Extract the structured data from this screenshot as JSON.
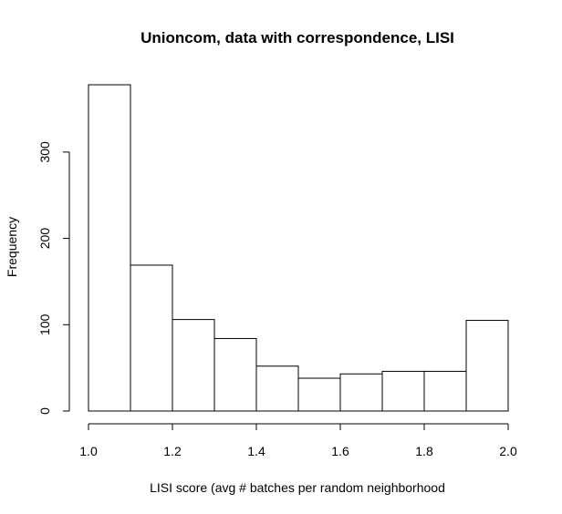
{
  "chart_data": {
    "type": "bar",
    "title": "Unioncom, data with correspondence, LISI",
    "xlabel": "LISI score (avg # batches per random neighborhood",
    "ylabel": "Frequency",
    "bins": [
      {
        "from": 1.0,
        "to": 1.1,
        "value": 378
      },
      {
        "from": 1.1,
        "to": 1.2,
        "value": 169
      },
      {
        "from": 1.2,
        "to": 1.3,
        "value": 106
      },
      {
        "from": 1.3,
        "to": 1.4,
        "value": 84
      },
      {
        "from": 1.4,
        "to": 1.5,
        "value": 52
      },
      {
        "from": 1.5,
        "to": 1.6,
        "value": 38
      },
      {
        "from": 1.6,
        "to": 1.7,
        "value": 43
      },
      {
        "from": 1.7,
        "to": 1.8,
        "value": 46
      },
      {
        "from": 1.8,
        "to": 1.9,
        "value": 46
      },
      {
        "from": 1.9,
        "to": 2.0,
        "value": 105
      }
    ],
    "xlim": [
      1.0,
      2.0
    ],
    "ylim": [
      0,
      378
    ],
    "x_ticks": [
      {
        "value": 1.0,
        "label": "1.0"
      },
      {
        "value": 1.2,
        "label": "1.2"
      },
      {
        "value": 1.4,
        "label": "1.4"
      },
      {
        "value": 1.6,
        "label": "1.6"
      },
      {
        "value": 1.8,
        "label": "1.8"
      },
      {
        "value": 2.0,
        "label": "2.0"
      }
    ],
    "y_ticks": [
      {
        "value": 0,
        "label": "0"
      },
      {
        "value": 100,
        "label": "100"
      },
      {
        "value": 200,
        "label": "200"
      },
      {
        "value": 300,
        "label": "300"
      }
    ],
    "grid": false
  }
}
